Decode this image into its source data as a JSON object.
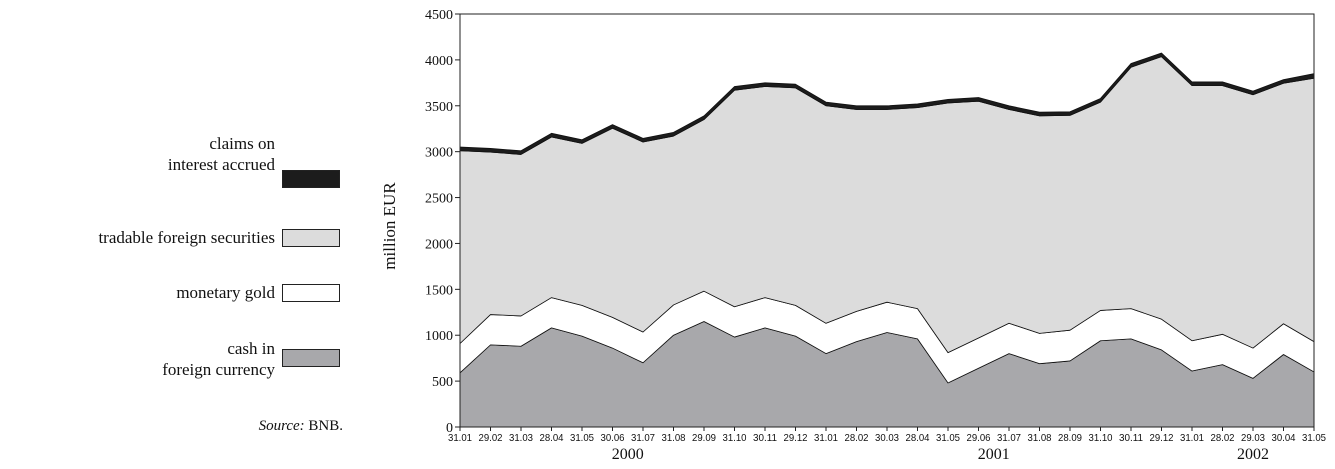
{
  "legend": {
    "items": [
      {
        "label": "claims on\ninterest accrued",
        "color": "#1c1c1c"
      },
      {
        "label": "tradable foreign securities",
        "color": "#dcdcdc"
      },
      {
        "label": "monetary gold",
        "color": "#ffffff"
      },
      {
        "label": "cash in\nforeign currency",
        "color": "#a8a8ab"
      }
    ]
  },
  "source": {
    "prefix": "Source:",
    "text": " BNB."
  },
  "chart_data": {
    "type": "area",
    "stacked": true,
    "ylabel": "million EUR",
    "ylim": [
      0,
      4500
    ],
    "yticks": [
      0,
      500,
      1000,
      1500,
      2000,
      2500,
      3000,
      3500,
      4000,
      4500
    ],
    "categories": [
      "31.01",
      "29.02",
      "31.03",
      "28.04",
      "31.05",
      "30.06",
      "31.07",
      "31.08",
      "29.09",
      "31.10",
      "30.11",
      "29.12",
      "31.01",
      "28.02",
      "30.03",
      "28.04",
      "31.05",
      "29.06",
      "31.07",
      "31.08",
      "28.09",
      "31.10",
      "30.11",
      "29.12",
      "31.01",
      "28.02",
      "29.03",
      "30.04",
      "31.05"
    ],
    "year_labels": [
      {
        "label": "2000",
        "center_index": 5.5
      },
      {
        "label": "2001",
        "center_index": 17.5
      },
      {
        "label": "2002",
        "center_index": 26
      }
    ],
    "series": [
      {
        "name": "cash in foreign currency",
        "color": "#a8a8ab",
        "values": [
          590,
          895,
          880,
          1080,
          990,
          860,
          700,
          1000,
          1150,
          980,
          1080,
          990,
          800,
          930,
          1030,
          960,
          480,
          640,
          800,
          690,
          720,
          940,
          960,
          840,
          610,
          680,
          530,
          790,
          600
        ]
      },
      {
        "name": "monetary gold",
        "color": "#ffffff",
        "values": [
          320,
          330,
          330,
          330,
          335,
          335,
          335,
          330,
          330,
          330,
          330,
          335,
          330,
          330,
          330,
          330,
          330,
          330,
          330,
          330,
          335,
          330,
          330,
          335,
          330,
          330,
          330,
          335,
          330
        ]
      },
      {
        "name": "tradable foreign securities",
        "color": "#dcdcdc",
        "values": [
          2100,
          1770,
          1760,
          1750,
          1765,
          2060,
          2070,
          1840,
          1870,
          2360,
          2300,
          2370,
          2370,
          2200,
          2100,
          2190,
          2720,
          2580,
          2330,
          2370,
          2340,
          2270,
          2630,
          2860,
          2780,
          2710,
          2760,
          2620,
          2870
        ]
      },
      {
        "name": "claims on interest accrued",
        "color": "#1c1c1c",
        "values": [
          40,
          40,
          40,
          40,
          40,
          40,
          40,
          40,
          40,
          40,
          40,
          40,
          40,
          40,
          40,
          40,
          40,
          40,
          40,
          40,
          40,
          40,
          40,
          40,
          40,
          40,
          40,
          40,
          50
        ]
      }
    ]
  }
}
